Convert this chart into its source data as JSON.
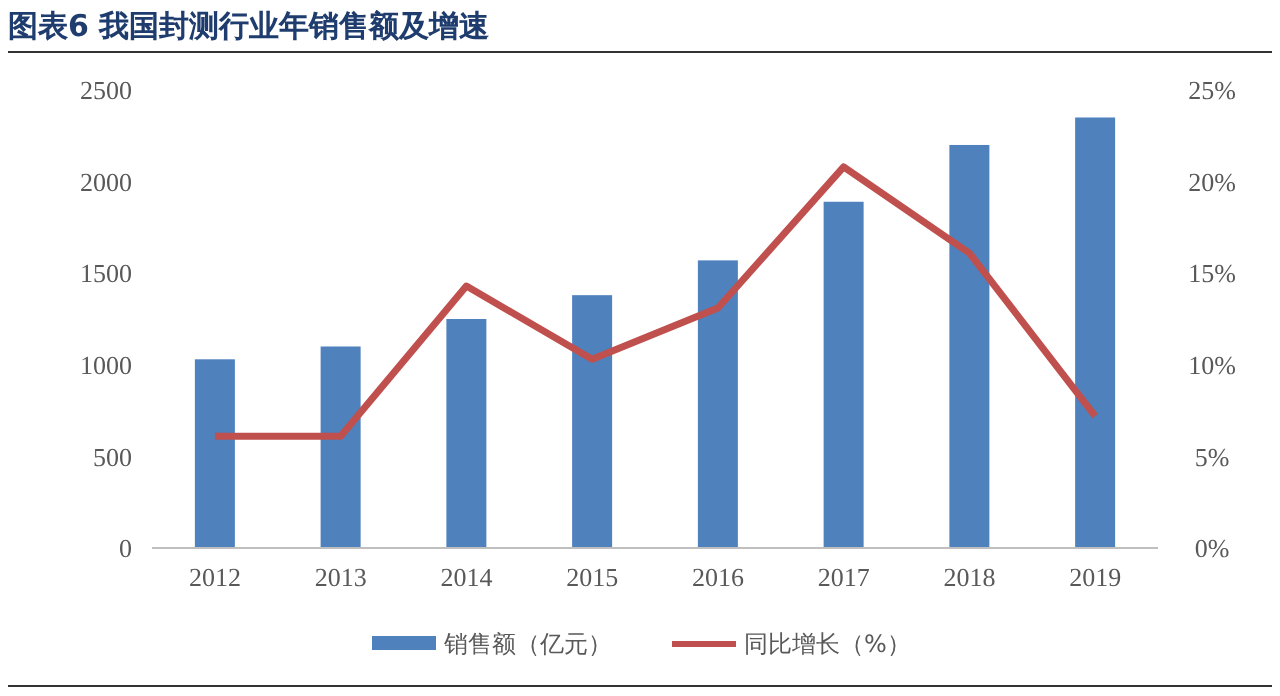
{
  "chart_data": {
    "type": "bar",
    "title": "图表6  我国封测行业年销售额及增速",
    "categories": [
      "2012",
      "2013",
      "2014",
      "2015",
      "2016",
      "2017",
      "2018",
      "2019"
    ],
    "series": [
      {
        "name": "销售额（亿元）",
        "color": "#4f81bd",
        "values": [
          1030,
          1100,
          1250,
          1380,
          1570,
          1890,
          2200,
          2350
        ]
      },
      {
        "name": "同比增长（%）",
        "type": "line",
        "axis": "y2",
        "color": "#c0504d",
        "values": [
          6.1,
          6.1,
          14.3,
          10.3,
          13.1,
          20.8,
          16.1,
          7.2
        ]
      }
    ],
    "ylim": [
      0,
      2500
    ],
    "yticks": [
      0,
      500,
      1000,
      1500,
      2000,
      2500
    ],
    "y2lim": [
      0,
      25
    ],
    "y2ticks": [
      {
        "value": 0,
        "label": "0%"
      },
      {
        "value": 5,
        "label": "5%"
      },
      {
        "value": 10,
        "label": "10%"
      },
      {
        "value": 15,
        "label": "15%"
      },
      {
        "value": 20,
        "label": "20%"
      },
      {
        "value": 25,
        "label": "25%"
      }
    ],
    "grid": false,
    "legend": "bottom",
    "marker": "none",
    "line_style": "solid"
  }
}
